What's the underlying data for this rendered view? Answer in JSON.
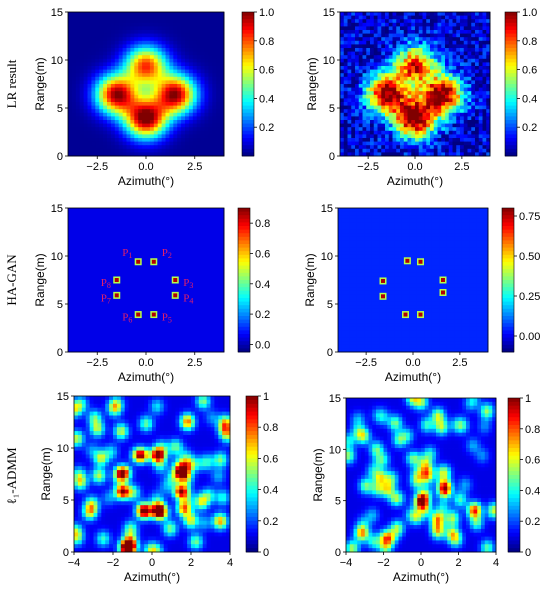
{
  "row_labels": [
    "LR result",
    "HA-GAN",
    "ℓ₁-ADMM"
  ],
  "chart_data": [
    {
      "type": "heatmap",
      "row": 0,
      "col": 0,
      "xlabel": "Azimuth(°)",
      "ylabel": "Range(m)",
      "xlim": [
        -4,
        4
      ],
      "ylim": [
        0,
        15
      ],
      "xticks": [
        "−2.5",
        "0.0",
        "2.5"
      ],
      "yticks": [
        "0",
        "5",
        "10",
        "15"
      ],
      "colorbar": {
        "range": [
          0,
          1.0
        ],
        "ticks": [
          "0.2",
          "0.4",
          "0.6",
          "0.8",
          "1.0"
        ]
      },
      "noise": "none",
      "style": "blurred",
      "blobs": [
        [
          0.0,
          9.4,
          0.8
        ],
        [
          -1.5,
          6.4,
          0.95
        ],
        [
          1.5,
          6.4,
          0.95
        ],
        [
          0.0,
          3.9,
          1.0
        ]
      ]
    },
    {
      "type": "heatmap",
      "row": 0,
      "col": 1,
      "xlabel": "Azimuth(°)",
      "ylabel": "Range(m)",
      "xlim": [
        -4,
        4
      ],
      "ylim": [
        0,
        15
      ],
      "xticks": [
        "−2.5",
        "0.0",
        "2.5"
      ],
      "yticks": [
        "0",
        "5",
        "10",
        "15"
      ],
      "colorbar": {
        "range": [
          0,
          1.0
        ],
        "ticks": [
          "0.2",
          "0.4",
          "0.6",
          "0.8",
          "1.0"
        ]
      },
      "noise": "pixel",
      "style": "blurred",
      "blobs": [
        [
          0.0,
          9.4,
          0.8
        ],
        [
          -1.5,
          6.4,
          0.95
        ],
        [
          1.5,
          6.4,
          0.95
        ],
        [
          0.0,
          3.9,
          1.0
        ]
      ]
    },
    {
      "type": "heatmap",
      "row": 1,
      "col": 0,
      "xlabel": "Azimuth(°)",
      "ylabel": "Range(m)",
      "xlim": [
        -4,
        4
      ],
      "ylim": [
        0,
        15
      ],
      "xticks": [
        "−2.5",
        "0.0",
        "2.5"
      ],
      "yticks": [
        "0",
        "5",
        "10",
        "15"
      ],
      "colorbar": {
        "range": [
          -0.05,
          0.9
        ],
        "ticks": [
          "0.0",
          "0.2",
          "0.4",
          "0.6",
          "0.8"
        ]
      },
      "noise": "none",
      "style": "points",
      "points": [
        {
          "label": "P",
          "sub": "1",
          "x": -0.4,
          "y": 9.4
        },
        {
          "label": "P",
          "sub": "2",
          "x": 0.4,
          "y": 9.4
        },
        {
          "label": "P",
          "sub": "3",
          "x": 1.5,
          "y": 7.5
        },
        {
          "label": "P",
          "sub": "4",
          "x": 1.5,
          "y": 5.9
        },
        {
          "label": "P",
          "sub": "5",
          "x": 0.4,
          "y": 3.9
        },
        {
          "label": "P",
          "sub": "6",
          "x": -0.4,
          "y": 3.9
        },
        {
          "label": "P",
          "sub": "7",
          "x": -1.5,
          "y": 5.9
        },
        {
          "label": "P",
          "sub": "8",
          "x": -1.5,
          "y": 7.5
        }
      ]
    },
    {
      "type": "heatmap",
      "row": 1,
      "col": 1,
      "xlabel": "Azimuth(°)",
      "ylabel": "Range(m)",
      "xlim": [
        -4,
        4
      ],
      "ylim": [
        0,
        15
      ],
      "xticks": [
        "−2.5",
        "0.0",
        "2.5"
      ],
      "yticks": [
        "0",
        "5",
        "10",
        "15"
      ],
      "colorbar": {
        "range": [
          -0.1,
          0.8
        ],
        "ticks": [
          "0.00",
          "0.25",
          "0.50",
          "0.75"
        ]
      },
      "noise": "none",
      "style": "points",
      "points": [
        {
          "x": -0.3,
          "y": 9.5
        },
        {
          "x": 0.4,
          "y": 9.4
        },
        {
          "x": 1.6,
          "y": 7.5
        },
        {
          "x": 1.6,
          "y": 6.2
        },
        {
          "x": 0.4,
          "y": 3.9
        },
        {
          "x": -0.4,
          "y": 3.9
        },
        {
          "x": -1.6,
          "y": 5.8
        },
        {
          "x": -1.6,
          "y": 7.4
        }
      ]
    },
    {
      "type": "heatmap",
      "row": 2,
      "col": 0,
      "xlabel": "Azimuth(°)",
      "ylabel": "Range(m)",
      "xlim": [
        -4,
        4
      ],
      "ylim": [
        0,
        15
      ],
      "xticks": [
        "−4",
        "−2",
        "0",
        "2",
        "4"
      ],
      "yticks": [
        "0",
        "5",
        "10",
        "15"
      ],
      "colorbar": {
        "range": [
          0,
          1
        ],
        "ticks": [
          "0",
          "0.2",
          "0.4",
          "0.6",
          "0.8",
          "1"
        ]
      },
      "noise": "speckle",
      "style": "speckle",
      "blobs": [
        [
          -0.6,
          9.3,
          0.95
        ],
        [
          0.3,
          9.3,
          0.95
        ],
        [
          -1.5,
          7.6,
          0.9
        ],
        [
          1.5,
          7.6,
          0.85
        ],
        [
          -1.5,
          5.8,
          0.9
        ],
        [
          1.5,
          5.8,
          0.85
        ],
        [
          -0.4,
          3.9,
          0.9
        ],
        [
          0.4,
          3.8,
          0.85
        ]
      ]
    },
    {
      "type": "heatmap",
      "row": 2,
      "col": 1,
      "xlabel": "Azimuth(°)",
      "ylabel": "Range(m)",
      "xlim": [
        -4,
        4
      ],
      "ylim": [
        0,
        15
      ],
      "xticks": [
        "−4",
        "−2",
        "0",
        "2",
        "4"
      ],
      "yticks": [
        "0",
        "5",
        "10",
        "15"
      ],
      "colorbar": {
        "range": [
          0,
          1
        ],
        "ticks": [
          "0",
          "0.2",
          "0.4",
          "0.6",
          "0.8",
          "1"
        ]
      },
      "noise": "speckle",
      "style": "speckle-weak",
      "blobs": [
        [
          0.9,
          3.3,
          0.55
        ],
        [
          -1.3,
          5.2,
          0.45
        ],
        [
          1.2,
          7.8,
          0.45
        ],
        [
          -0.4,
          9.1,
          0.4
        ]
      ]
    }
  ]
}
